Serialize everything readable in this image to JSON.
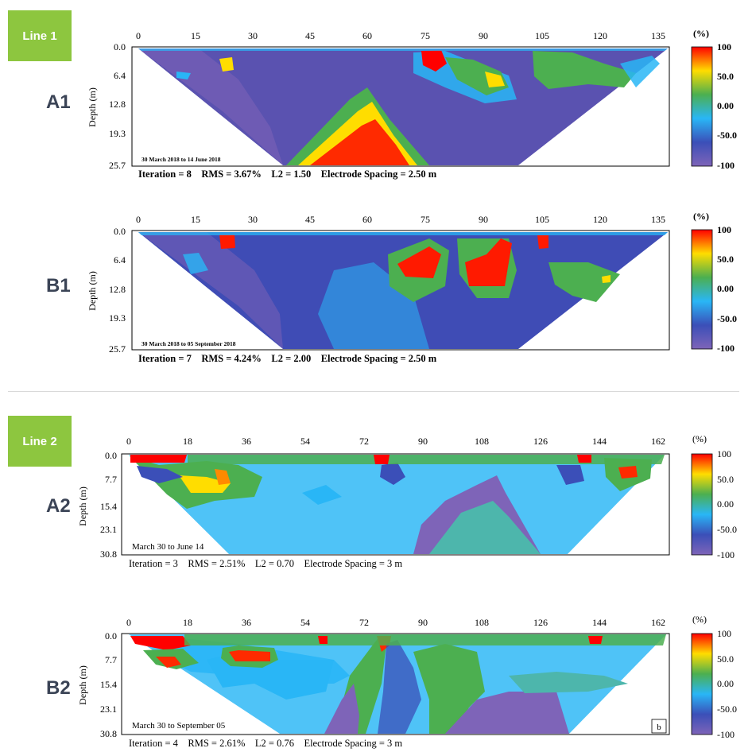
{
  "sections": [
    {
      "tag": "Line 1"
    },
    {
      "tag": "Line 2"
    }
  ],
  "chart_data": [
    {
      "type": "heatmap",
      "panel_label": "A1",
      "x_ticks": [
        "0",
        "15",
        "30",
        "45",
        "60",
        "75",
        "90",
        "105",
        "120",
        "135"
      ],
      "xlim": [
        0,
        140
      ],
      "depth_ticks": [
        "0.0",
        "6.4",
        "12.8",
        "19.3",
        "25.7"
      ],
      "ylabel": "Depth (m)",
      "ylim": [
        0,
        25.7
      ],
      "date_range": "30 March 2018 to 14 June 2018",
      "footer": "Iteration = 8    RMS = 3.67%    L2 = 1.50    Electrode Spacing = 2.50 m",
      "colorbar_unit": "(%)",
      "colorbar_ticks": [
        "100",
        "50.0",
        "0.00",
        "-50.0",
        "-100"
      ],
      "colorbar_range": [
        -100,
        100
      ],
      "colorbar_colors": [
        "#ff0000",
        "#ffdd00",
        "#4caf50",
        "#29b6f6",
        "#3b4fb8",
        "#7e64b8"
      ],
      "section_outline": {
        "bottom_x_range": [
          38,
          101
        ],
        "top_x_range": [
          0,
          138
        ]
      }
    },
    {
      "type": "heatmap",
      "panel_label": "B1",
      "x_ticks": [
        "0",
        "15",
        "30",
        "45",
        "60",
        "75",
        "90",
        "105",
        "120",
        "135"
      ],
      "xlim": [
        0,
        140
      ],
      "depth_ticks": [
        "0.0",
        "6.4",
        "12.8",
        "19.3",
        "25.7"
      ],
      "ylabel": "Depth (m)",
      "ylim": [
        0,
        25.7
      ],
      "date_range": "30 March 2018 to 05 September 2018",
      "footer": "Iteration = 7    RMS = 4.24%    L2 = 2.00    Electrode Spacing = 2.50 m",
      "colorbar_unit": "(%)",
      "colorbar_ticks": [
        "100",
        "50.0",
        "0.00",
        "-50.0",
        "-100"
      ],
      "colorbar_range": [
        -100,
        100
      ],
      "colorbar_colors": [
        "#ff0000",
        "#ffdd00",
        "#4caf50",
        "#29b6f6",
        "#3b4fb8",
        "#7e64b8"
      ],
      "section_outline": {
        "bottom_x_range": [
          38,
          101
        ],
        "top_x_range": [
          0,
          138
        ]
      }
    },
    {
      "type": "heatmap",
      "panel_label": "A2",
      "x_ticks": [
        "0",
        "18",
        "36",
        "54",
        "72",
        "90",
        "108",
        "126",
        "144",
        "162"
      ],
      "xlim": [
        0,
        168
      ],
      "depth_ticks": [
        "0.0",
        "7.7",
        "15.4",
        "23.1",
        "30.8"
      ],
      "ylabel": "Depth (m)",
      "ylim": [
        0,
        30.8
      ],
      "date_range": "March 30 to June 14",
      "footer": "Iteration = 3    RMS = 2.51%    L2 = 0.70    Electrode Spacing = 3 m",
      "colorbar_unit": "(%)",
      "colorbar_ticks": [
        "100",
        "50.0",
        "0.00",
        "-50.0",
        "-100"
      ],
      "colorbar_range": [
        -100,
        100
      ],
      "colorbar_colors": [
        "#ff0000",
        "#ffdd00",
        "#4caf50",
        "#29b6f6",
        "#3b4fb8",
        "#7e64b8"
      ],
      "section_outline": {
        "bottom_x_range": [
          30,
          136
        ],
        "top_x_range": [
          0,
          165
        ]
      }
    },
    {
      "type": "heatmap",
      "panel_label": "B2",
      "x_ticks": [
        "0",
        "18",
        "36",
        "54",
        "72",
        "90",
        "108",
        "126",
        "144",
        "162"
      ],
      "xlim": [
        0,
        168
      ],
      "depth_ticks": [
        "0.0",
        "7.7",
        "15.4",
        "23.1",
        "30.8"
      ],
      "ylabel": "Depth (m)",
      "ylim": [
        0,
        30.8
      ],
      "date_range": "March 30 to September 05",
      "footer": "Iteration = 4    RMS = 2.61%    L2 = 0.76    Electrode Spacing = 3 m",
      "colorbar_unit": "(%)",
      "colorbar_ticks": [
        "100",
        "50.0",
        "0.00",
        "-50.0",
        "-100"
      ],
      "colorbar_range": [
        -100,
        100
      ],
      "colorbar_colors": [
        "#ff0000",
        "#ffdd00",
        "#4caf50",
        "#29b6f6",
        "#3b4fb8",
        "#7e64b8"
      ],
      "section_outline": {
        "bottom_x_range": [
          46,
          137
        ],
        "top_x_range": [
          0,
          166
        ]
      },
      "corner_label": "b"
    }
  ]
}
